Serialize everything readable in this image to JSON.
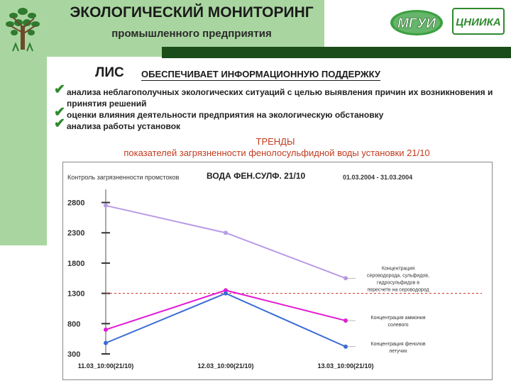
{
  "header": {
    "title": "ЭКОЛОГИЧЕСКИЙ МОНИТОРИНГ",
    "subtitle": "промышленного предприятия",
    "logo_mgu": "МГУИ",
    "logo_cniika": "ЦНИИКА"
  },
  "intro": {
    "lis": "ЛИС",
    "lis_text": "ОБЕСПЕЧИВАЕТ ИНФОРМАЦИОННУЮ ПОДДЕРЖКУ",
    "bullets": [
      "анализа неблагополучных экологических ситуаций с целью выявления причин их возникновения и принятия решений",
      "оценки влияния деятельности предприятия на экологическую обстановку",
      "анализа работы установок"
    ]
  },
  "trends": {
    "heading": "ТРЕНДЫ",
    "subheading": "показателей загрязненности фенолосульфидной воды установки 21/10"
  },
  "colors": {
    "header_bg": "#a9d6a0",
    "header_rule": "#1a4d1a",
    "accent_red": "#c23b1f",
    "check_green": "#2e8b2e",
    "series_h2s": "#b99be6",
    "series_nh3": "#e11ad4",
    "series_phenol": "#3a6bd6",
    "norm_line": "#cc2b2b"
  },
  "chart_data": {
    "type": "line",
    "header_left": "Контроль загрязненности промстоков",
    "title": "ВОДА ФЕН.СУЛФ. 21/10",
    "period": "01.03.2004 - 31.03.2004",
    "categories": [
      "11.03_10:00(21/10)",
      "12.03_10:00(21/10)",
      "13.03_10:00(21/10)"
    ],
    "y_ticks": [
      300,
      800,
      1300,
      1800,
      2300,
      2800
    ],
    "ylim": [
      300,
      2900
    ],
    "grid": false,
    "reference_line": {
      "value": 1300,
      "style": "dashed"
    },
    "series": [
      {
        "name": "Концентрация сероводорода, сульфидов, гидросульфидов в пересчете на сероводород",
        "values": [
          2750,
          2300,
          1550
        ],
        "color": "#b99be6"
      },
      {
        "name": "Концентрация аммония солевого",
        "values": [
          700,
          1350,
          850
        ],
        "color": "#e11ad4"
      },
      {
        "name": "Концентрация фенолов летучих",
        "values": [
          480,
          1300,
          420
        ],
        "color": "#3a6bd6"
      }
    ]
  }
}
